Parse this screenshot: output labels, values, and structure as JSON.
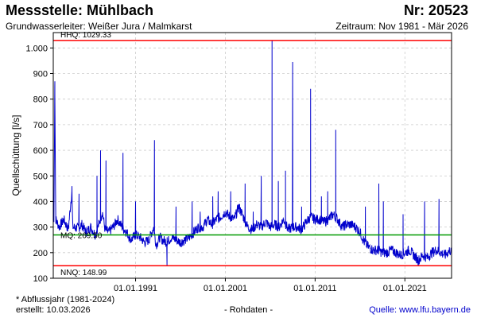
{
  "header": {
    "station": "Messstelle: Mühlbach",
    "number": "Nr: 20523",
    "aquifer": "Grundwasserleiter: Weißer Jura / Malmkarst",
    "period": "Zeitraum: Nov 1981 - Mär 2026"
  },
  "footer": {
    "note": "* Abflussjahr (1981-2024)",
    "created": "erstellt:  10.03.2026",
    "rawdata": "- Rohdaten -",
    "source": "Quelle: www.lfu.bayern.de"
  },
  "colors": {
    "series": "#0000cc",
    "max_line": "#ff0000",
    "min_line": "#ff0000",
    "mean_line": "#009900",
    "grid": "#cccccc"
  },
  "chart_data": {
    "type": "line",
    "ylabel": "Quellschüttung [l/s]",
    "xlabel": "",
    "x_ticks": [
      "01.01.1991",
      "01.01.2001",
      "01.01.2011",
      "01.01.2021"
    ],
    "y_ticks": [
      "100",
      "200",
      "300",
      "400",
      "500",
      "600",
      "700",
      "800",
      "900",
      "1.000"
    ],
    "xlim": [
      1981.83,
      2026.2
    ],
    "ylim": [
      100,
      1060
    ],
    "grid": true,
    "reference_lines": [
      {
        "label": "HHQ: 1029.33",
        "value": 1029.33,
        "color": "#ff0000"
      },
      {
        "label": "MQ: 269.50",
        "value": 269.5,
        "color": "#009900"
      },
      {
        "label": "NNQ: 148.99",
        "value": 148.99,
        "color": "#ff0000"
      }
    ],
    "series": [
      {
        "values": [
          [
            1981.9,
            320
          ],
          [
            1982.0,
            850
          ],
          [
            1982.1,
            330
          ],
          [
            1982.5,
            300
          ],
          [
            1983.0,
            330
          ],
          [
            1983.5,
            290
          ],
          [
            1983.9,
            440
          ],
          [
            1984.0,
            300
          ],
          [
            1984.6,
            295
          ],
          [
            1985.0,
            310
          ],
          [
            1985.5,
            280
          ],
          [
            1986.0,
            300
          ],
          [
            1986.5,
            270
          ],
          [
            1987.0,
            320
          ],
          [
            1987.3,
            360
          ],
          [
            1987.6,
            290
          ],
          [
            1988.0,
            280
          ],
          [
            1988.5,
            300
          ],
          [
            1989.0,
            330
          ],
          [
            1989.5,
            300
          ],
          [
            1990.0,
            280
          ],
          [
            1990.5,
            250
          ],
          [
            1991.0,
            270
          ],
          [
            1991.5,
            260
          ],
          [
            1992.0,
            240
          ],
          [
            1992.5,
            250
          ],
          [
            1993.0,
            300
          ],
          [
            1993.3,
            230
          ],
          [
            1993.7,
            260
          ],
          [
            1994.0,
            250
          ],
          [
            1994.5,
            240
          ],
          [
            1995.0,
            260
          ],
          [
            1995.5,
            250
          ],
          [
            1996.0,
            240
          ],
          [
            1996.5,
            250
          ],
          [
            1997.0,
            260
          ],
          [
            1997.5,
            280
          ],
          [
            1998.0,
            300
          ],
          [
            1998.5,
            300
          ],
          [
            1999.0,
            330
          ],
          [
            1999.5,
            310
          ],
          [
            2000.0,
            330
          ],
          [
            2000.5,
            340
          ],
          [
            2001.0,
            360
          ],
          [
            2001.5,
            340
          ],
          [
            2002.0,
            330
          ],
          [
            2002.5,
            380
          ],
          [
            2003.0,
            340
          ],
          [
            2003.5,
            300
          ],
          [
            2004.0,
            290
          ],
          [
            2004.5,
            310
          ],
          [
            2005.0,
            300
          ],
          [
            2005.5,
            320
          ],
          [
            2006.0,
            300
          ],
          [
            2006.5,
            310
          ],
          [
            2007.0,
            300
          ],
          [
            2007.5,
            330
          ],
          [
            2008.0,
            290
          ],
          [
            2008.5,
            300
          ],
          [
            2009.0,
            300
          ],
          [
            2009.5,
            290
          ],
          [
            2010.0,
            320
          ],
          [
            2010.5,
            340
          ],
          [
            2011.0,
            330
          ],
          [
            2011.5,
            330
          ],
          [
            2012.0,
            320
          ],
          [
            2012.5,
            330
          ],
          [
            2013.0,
            350
          ],
          [
            2013.5,
            330
          ],
          [
            2014.0,
            300
          ],
          [
            2014.5,
            310
          ],
          [
            2015.0,
            310
          ],
          [
            2015.5,
            300
          ],
          [
            2016.0,
            280
          ],
          [
            2016.5,
            240
          ],
          [
            2017.0,
            220
          ],
          [
            2017.5,
            210
          ],
          [
            2018.0,
            210
          ],
          [
            2018.5,
            200
          ],
          [
            2019.0,
            200
          ],
          [
            2019.5,
            210
          ],
          [
            2020.0,
            200
          ],
          [
            2020.5,
            190
          ],
          [
            2021.0,
            200
          ],
          [
            2021.5,
            210
          ],
          [
            2022.0,
            190
          ],
          [
            2022.5,
            170
          ],
          [
            2023.0,
            190
          ],
          [
            2023.5,
            180
          ],
          [
            2024.0,
            200
          ],
          [
            2024.5,
            210
          ],
          [
            2025.0,
            200
          ],
          [
            2025.5,
            190
          ],
          [
            2026.0,
            210
          ],
          [
            2026.2,
            200
          ]
        ],
        "peaks": [
          [
            1982.0,
            850
          ],
          [
            1983.9,
            440
          ],
          [
            1984.7,
            430
          ],
          [
            1986.7,
            500
          ],
          [
            1987.1,
            600
          ],
          [
            1987.7,
            560
          ],
          [
            1989.6,
            590
          ],
          [
            1991.0,
            400
          ],
          [
            1993.1,
            640
          ],
          [
            1994.5,
            150
          ],
          [
            1995.5,
            380
          ],
          [
            1997.3,
            400
          ],
          [
            1998.2,
            360
          ],
          [
            1999.6,
            420
          ],
          [
            2000.2,
            440
          ],
          [
            2001.6,
            440
          ],
          [
            2003.2,
            470
          ],
          [
            2004.1,
            360
          ],
          [
            2005.0,
            500
          ],
          [
            2006.2,
            1029
          ],
          [
            2006.9,
            480
          ],
          [
            2007.7,
            520
          ],
          [
            2008.5,
            945
          ],
          [
            2009.5,
            380
          ],
          [
            2010.5,
            840
          ],
          [
            2011.7,
            420
          ],
          [
            2012.4,
            440
          ],
          [
            2013.3,
            680
          ],
          [
            2016.6,
            380
          ],
          [
            2018.1,
            470
          ],
          [
            2018.6,
            400
          ],
          [
            2020.8,
            350
          ],
          [
            2023.2,
            400
          ],
          [
            2024.8,
            410
          ]
        ]
      }
    ]
  }
}
